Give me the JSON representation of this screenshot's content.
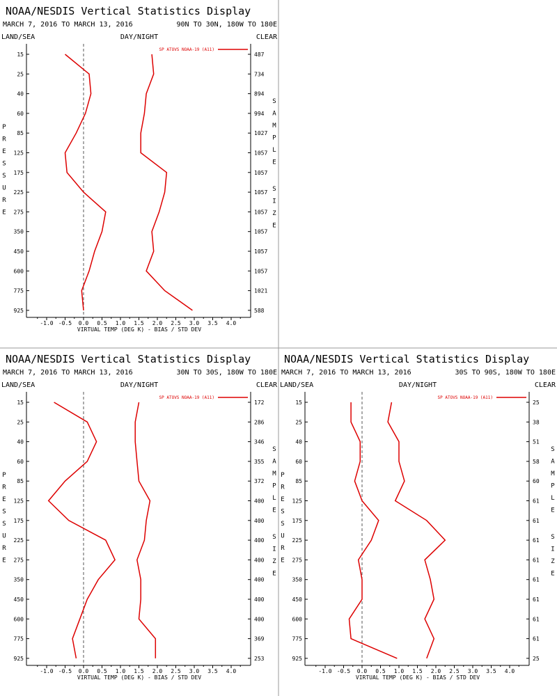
{
  "colors": {
    "series": "#dd0000",
    "axis": "#000000",
    "zero_line": "#555555",
    "divider": "#999999"
  },
  "chart_data": [
    {
      "type": "line",
      "title": "NOAA/NESDIS Vertical Statistics Display",
      "date_range": "MARCH 7, 2016 TO MARCH 13, 2016",
      "region": "90N TO 30N, 180W TO 180E",
      "filters": {
        "left": "LAND/SEA",
        "center": "DAY/NIGHT",
        "right": "CLEAR"
      },
      "legend": "SP ATOVS NOAA-19 (A11)",
      "xlabel": "VIRTUAL TEMP (DEG K) - BIAS / STD DEV",
      "ylabel": "PRESSURE",
      "y2label": "SAMPLE SIZE",
      "xlim": [
        -1.5,
        4.5
      ],
      "xticks": [
        "-1.0",
        "-0.5",
        "0.0",
        "0.5",
        "1.0",
        "1.5",
        "2.0",
        "2.5",
        "3.0",
        "3.5",
        "4.0"
      ],
      "pressure_levels": [
        "15",
        "25",
        "40",
        "60",
        "85",
        "125",
        "175",
        "225",
        "275",
        "350",
        "450",
        "600",
        "775",
        "925"
      ],
      "sample_size": [
        "487",
        "734",
        "894",
        "994",
        "1027",
        "1057",
        "1057",
        "1057",
        "1057",
        "1057",
        "1057",
        "1057",
        "1021",
        "588"
      ],
      "series": [
        {
          "name": "bias",
          "values": [
            -0.5,
            0.15,
            0.2,
            0.05,
            -0.2,
            -0.5,
            -0.45,
            0.0,
            0.6,
            0.5,
            0.3,
            0.15,
            -0.05,
            0.0
          ]
        },
        {
          "name": "std dev",
          "values": [
            1.85,
            1.9,
            1.7,
            1.65,
            1.55,
            1.55,
            2.25,
            2.2,
            2.05,
            1.85,
            1.9,
            1.7,
            2.2,
            2.95
          ]
        }
      ]
    },
    {
      "type": "line",
      "title": "NOAA/NESDIS Vertical Statistics Display",
      "date_range": "MARCH 7, 2016 TO MARCH 13, 2016",
      "region": "30N TO 30S, 180W TO 180E",
      "filters": {
        "left": "LAND/SEA",
        "center": "DAY/NIGHT",
        "right": "CLEAR"
      },
      "legend": "SP ATOVS NOAA-19 (A11)",
      "xlabel": "VIRTUAL TEMP (DEG K) - BIAS / STD DEV",
      "ylabel": "PRESSURE",
      "y2label": "SAMPLE SIZE",
      "xlim": [
        -1.5,
        4.5
      ],
      "xticks": [
        "-1.0",
        "-0.5",
        "0.0",
        "0.5",
        "1.0",
        "1.5",
        "2.0",
        "2.5",
        "3.0",
        "3.5",
        "4.0"
      ],
      "pressure_levels": [
        "15",
        "25",
        "40",
        "60",
        "85",
        "125",
        "175",
        "225",
        "275",
        "350",
        "450",
        "600",
        "775",
        "925"
      ],
      "sample_size": [
        "172",
        "286",
        "346",
        "355",
        "372",
        "400",
        "400",
        "400",
        "400",
        "400",
        "400",
        "400",
        "369",
        "253"
      ],
      "series": [
        {
          "name": "bias",
          "values": [
            -0.8,
            0.1,
            0.35,
            0.1,
            -0.5,
            -0.95,
            -0.4,
            0.6,
            0.85,
            0.4,
            0.1,
            -0.1,
            -0.3,
            -0.2
          ]
        },
        {
          "name": "std dev",
          "values": [
            1.5,
            1.4,
            1.4,
            1.45,
            1.5,
            1.8,
            1.7,
            1.65,
            1.45,
            1.55,
            1.55,
            1.5,
            1.95,
            1.95
          ]
        }
      ]
    },
    {
      "type": "line",
      "title": "NOAA/NESDIS Vertical Statistics Display",
      "date_range": "MARCH 7, 2016 TO MARCH 13, 2016",
      "region": "30S TO 90S, 180W TO 180E",
      "filters": {
        "left": "LAND/SEA",
        "center": "DAY/NIGHT",
        "right": "CLEAR"
      },
      "legend": "SP ATOVS NOAA-19 (A11)",
      "xlabel": "VIRTUAL TEMP (DEG K) - BIAS / STD DEV",
      "ylabel": "PRESSURE",
      "y2label": "SAMPLE SIZE",
      "xlim": [
        -1.5,
        4.5
      ],
      "xticks": [
        "-1.0",
        "-0.5",
        "0.0",
        "0.5",
        "1.0",
        "1.5",
        "2.0",
        "2.5",
        "3.0",
        "3.5",
        "4.0"
      ],
      "pressure_levels": [
        "15",
        "25",
        "40",
        "60",
        "85",
        "125",
        "175",
        "225",
        "275",
        "350",
        "450",
        "600",
        "775",
        "925"
      ],
      "sample_size": [
        "25",
        "38",
        "51",
        "58",
        "60",
        "61",
        "61",
        "61",
        "61",
        "61",
        "61",
        "61",
        "61",
        "25"
      ],
      "series": [
        {
          "name": "bias",
          "values": [
            -0.3,
            -0.3,
            -0.05,
            -0.05,
            -0.2,
            0.0,
            0.45,
            0.25,
            -0.1,
            0.0,
            0.0,
            -0.35,
            -0.3,
            0.95
          ]
        },
        {
          "name": "std dev",
          "values": [
            0.8,
            0.7,
            1.0,
            1.0,
            1.15,
            0.9,
            1.75,
            2.25,
            1.7,
            1.85,
            1.95,
            1.7,
            1.95,
            1.75
          ]
        }
      ]
    }
  ]
}
